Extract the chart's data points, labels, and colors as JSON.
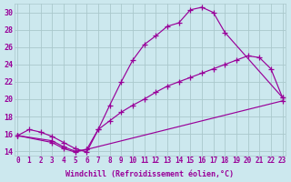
{
  "xlabel": "Windchill (Refroidissement éolien,°C)",
  "bg_color": "#cce8ee",
  "grid_color": "#aac8cc",
  "line_color": "#990099",
  "line1_x": [
    0,
    1,
    2,
    3,
    4,
    5,
    6,
    7,
    8,
    9,
    10,
    11,
    12,
    13,
    14,
    15,
    16,
    17,
    18,
    23
  ],
  "line1_y": [
    15.8,
    16.5,
    16.2,
    15.7,
    15.0,
    14.3,
    13.9,
    16.5,
    19.3,
    22.0,
    24.5,
    26.3,
    27.3,
    28.4,
    28.8,
    30.3,
    30.6,
    30.0,
    27.7,
    20.2
  ],
  "line2_x": [
    0,
    3,
    4,
    5,
    6,
    7,
    8,
    9,
    10,
    11,
    12,
    13,
    14,
    15,
    16,
    17,
    18,
    19,
    20,
    21,
    22,
    23
  ],
  "line2_y": [
    15.8,
    15.2,
    14.5,
    14.0,
    14.2,
    16.5,
    17.5,
    18.5,
    19.3,
    20.0,
    20.8,
    21.5,
    22.0,
    22.5,
    23.0,
    23.5,
    24.0,
    24.5,
    25.0,
    24.8,
    23.5,
    20.2
  ],
  "line3_x": [
    0,
    3,
    4,
    5,
    6,
    23
  ],
  "line3_y": [
    15.8,
    15.0,
    14.3,
    13.9,
    14.2,
    19.8
  ],
  "xlim": [
    0,
    23
  ],
  "ylim": [
    13.5,
    31.0
  ],
  "yticks": [
    14,
    16,
    18,
    20,
    22,
    24,
    26,
    28,
    30
  ],
  "xticks": [
    0,
    1,
    2,
    3,
    4,
    5,
    6,
    7,
    8,
    9,
    10,
    11,
    12,
    13,
    14,
    15,
    16,
    17,
    18,
    19,
    20,
    21,
    22,
    23
  ],
  "tick_fontsize": 5.5,
  "label_fontsize": 6.0
}
